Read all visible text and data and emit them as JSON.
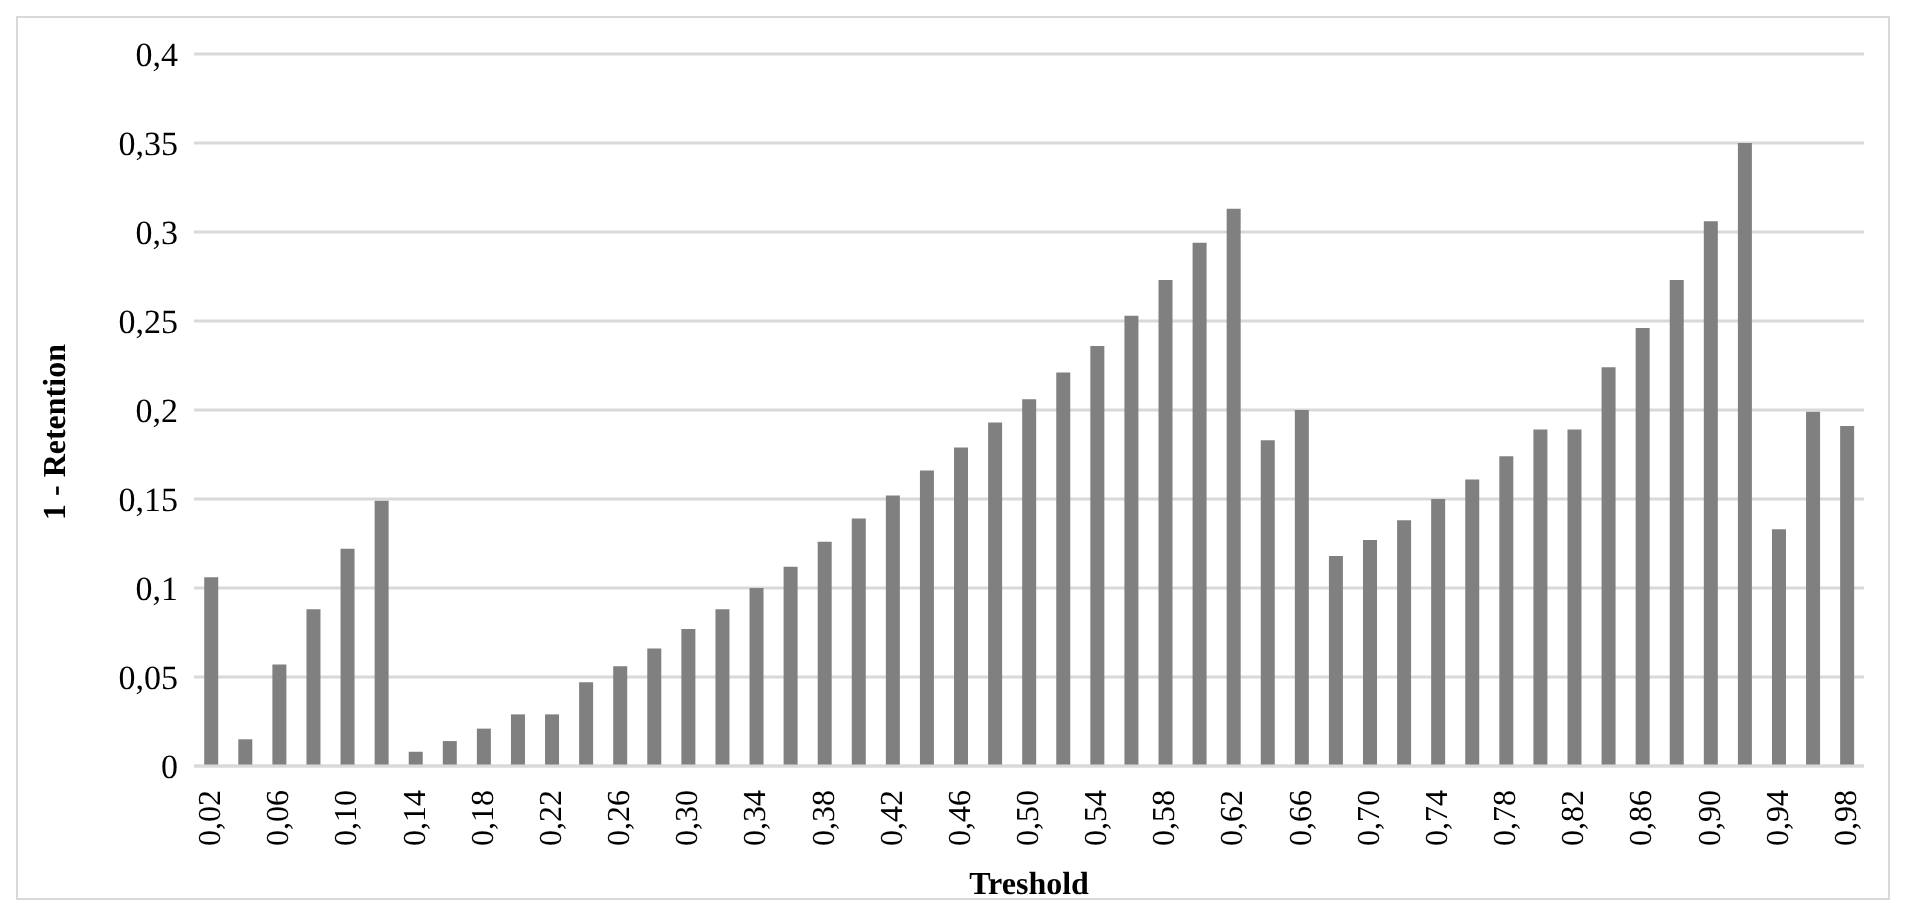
{
  "chart_data": {
    "type": "bar",
    "xlabel": "Treshold",
    "ylabel": "1 - Retention",
    "categories": [
      "0,02",
      null,
      "0,06",
      null,
      "0,10",
      null,
      "0,14",
      null,
      "0,18",
      null,
      "0,22",
      null,
      "0,26",
      null,
      "0,30",
      null,
      "0,34",
      null,
      "0,38",
      null,
      "0,42",
      null,
      "0,46",
      null,
      "0,50",
      null,
      "0,54",
      null,
      "0,58",
      null,
      "0,62",
      null,
      "0,66",
      null,
      "0,70",
      null,
      "0,74",
      null,
      "0,78",
      null,
      "0,82",
      null,
      "0,86",
      null,
      "0,90",
      null,
      "0,94",
      null,
      "0,98"
    ],
    "values": [
      0.106,
      0.015,
      0.057,
      0.088,
      0.122,
      0.149,
      0.008,
      0.014,
      0.021,
      0.029,
      0.029,
      0.047,
      0.056,
      0.066,
      0.077,
      0.088,
      0.1,
      0.112,
      0.126,
      0.139,
      0.152,
      0.166,
      0.179,
      0.193,
      0.206,
      0.221,
      0.236,
      0.253,
      0.273,
      0.294,
      0.313,
      0.183,
      0.2,
      0.118,
      0.127,
      0.138,
      0.15,
      0.161,
      0.174,
      0.189,
      0.189,
      0.224,
      0.246,
      0.273,
      0.306,
      0.35,
      0.133,
      0.199,
      0.191
    ],
    "color": "#808080",
    "ylim": [
      0,
      0.4
    ],
    "yticks": [
      {
        "value": 0,
        "label": "0"
      },
      {
        "value": 0.05,
        "label": "0,05"
      },
      {
        "value": 0.1,
        "label": "0,1"
      },
      {
        "value": 0.15,
        "label": "0,15"
      },
      {
        "value": 0.2,
        "label": "0,2"
      },
      {
        "value": 0.25,
        "label": "0,25"
      },
      {
        "value": 0.3,
        "label": "0,3"
      },
      {
        "value": 0.35,
        "label": "0,35"
      },
      {
        "value": 0.4,
        "label": "0,4"
      }
    ],
    "grid": "y"
  }
}
